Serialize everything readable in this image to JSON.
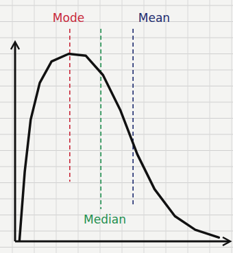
{
  "chart_data": {
    "type": "line",
    "x": [
      0.2,
      0.45,
      0.73,
      1.15,
      1.7,
      2.5,
      3.3,
      4.1,
      4.9,
      5.7,
      6.5,
      7.45,
      8.4,
      9.5
    ],
    "series": [
      {
        "color": "#111111",
        "values": [
          0,
          3.6,
          6.3,
          8.2,
          9.3,
          9.7,
          9.6,
          8.6,
          6.8,
          4.5,
          2.7,
          1.3,
          0.6,
          0.2
        ]
      }
    ],
    "xlim": [
      0,
      10
    ],
    "ylim": [
      0,
      10
    ],
    "tick_labels": false,
    "annotations": [
      {
        "text": "Mode",
        "x": 2.55,
        "color": "#c8283a"
      },
      {
        "text": "Median",
        "x": 4.0,
        "color": "#1f8f4e"
      },
      {
        "text": "Mean",
        "x": 5.5,
        "color": "#1c2a6e"
      }
    ]
  }
}
